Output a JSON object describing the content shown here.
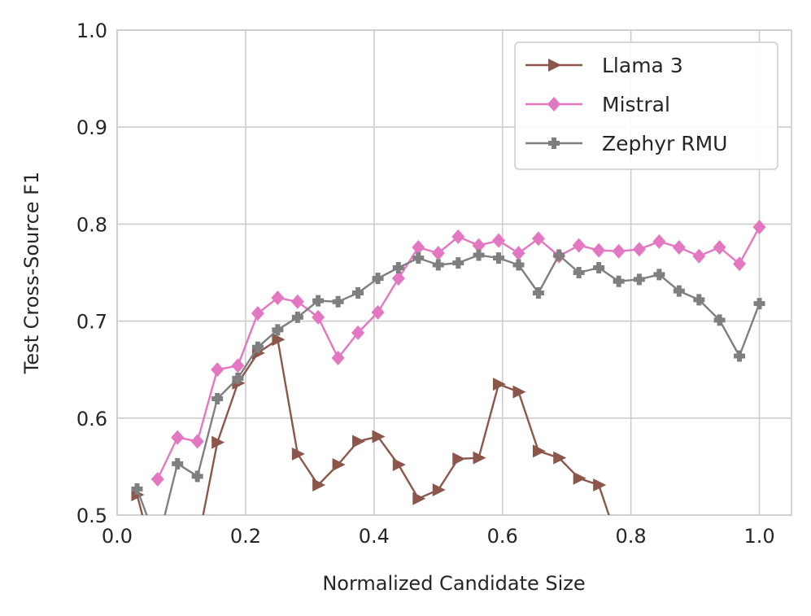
{
  "chart_data": {
    "type": "line",
    "title": "",
    "xlabel": "Normalized Candidate Size",
    "ylabel": "Test Cross-Source F1",
    "xlim": [
      0.0,
      1.05
    ],
    "ylim": [
      0.5,
      1.0
    ],
    "xticks": [
      "0.0",
      "0.2",
      "0.4",
      "0.6",
      "0.8",
      "1.0"
    ],
    "yticks": [
      "0.5",
      "0.6",
      "0.7",
      "0.8",
      "0.9",
      "1.0"
    ],
    "grid": true,
    "legend_position": "top-right",
    "series": [
      {
        "name": "Llama 3",
        "color": "#8c564b",
        "marker": "triangle-right",
        "points": [
          [
            0.031,
            0.521
          ],
          [
            0.063,
            0.44
          ],
          [
            0.125,
            0.47
          ],
          [
            0.156,
            0.575
          ],
          [
            0.188,
            0.636
          ],
          [
            0.219,
            0.667
          ],
          [
            0.25,
            0.681
          ],
          [
            0.281,
            0.563
          ],
          [
            0.313,
            0.531
          ],
          [
            0.344,
            0.552
          ],
          [
            0.375,
            0.576
          ],
          [
            0.406,
            0.581
          ],
          [
            0.438,
            0.552
          ],
          [
            0.469,
            0.517
          ],
          [
            0.5,
            0.526
          ],
          [
            0.531,
            0.558
          ],
          [
            0.563,
            0.559
          ],
          [
            0.594,
            0.635
          ],
          [
            0.625,
            0.627
          ],
          [
            0.656,
            0.566
          ],
          [
            0.688,
            0.559
          ],
          [
            0.719,
            0.538
          ],
          [
            0.75,
            0.531
          ],
          [
            0.781,
            0.47
          ]
        ]
      },
      {
        "name": "Mistral",
        "color": "#e377c2",
        "marker": "diamond",
        "points": [
          [
            0.063,
            0.537
          ],
          [
            0.094,
            0.58
          ],
          [
            0.125,
            0.576
          ],
          [
            0.156,
            0.65
          ],
          [
            0.188,
            0.654
          ],
          [
            0.219,
            0.708
          ],
          [
            0.25,
            0.724
          ],
          [
            0.281,
            0.72
          ],
          [
            0.313,
            0.704
          ],
          [
            0.344,
            0.662
          ],
          [
            0.375,
            0.688
          ],
          [
            0.406,
            0.709
          ],
          [
            0.438,
            0.744
          ],
          [
            0.469,
            0.776
          ],
          [
            0.5,
            0.77
          ],
          [
            0.531,
            0.787
          ],
          [
            0.563,
            0.778
          ],
          [
            0.594,
            0.783
          ],
          [
            0.625,
            0.77
          ],
          [
            0.656,
            0.785
          ],
          [
            0.688,
            0.767
          ],
          [
            0.719,
            0.778
          ],
          [
            0.75,
            0.773
          ],
          [
            0.781,
            0.772
          ],
          [
            0.813,
            0.774
          ],
          [
            0.844,
            0.782
          ],
          [
            0.875,
            0.776
          ],
          [
            0.906,
            0.767
          ],
          [
            0.938,
            0.776
          ],
          [
            0.969,
            0.759
          ],
          [
            1.0,
            0.797
          ]
        ]
      },
      {
        "name": "Zephyr RMU",
        "color": "#7f7f7f",
        "marker": "plus",
        "points": [
          [
            0.031,
            0.527
          ],
          [
            0.063,
            0.47
          ],
          [
            0.094,
            0.553
          ],
          [
            0.125,
            0.54
          ],
          [
            0.156,
            0.62
          ],
          [
            0.188,
            0.641
          ],
          [
            0.219,
            0.673
          ],
          [
            0.25,
            0.691
          ],
          [
            0.281,
            0.704
          ],
          [
            0.313,
            0.721
          ],
          [
            0.344,
            0.72
          ],
          [
            0.375,
            0.729
          ],
          [
            0.406,
            0.744
          ],
          [
            0.438,
            0.755
          ],
          [
            0.469,
            0.765
          ],
          [
            0.5,
            0.758
          ],
          [
            0.531,
            0.76
          ],
          [
            0.563,
            0.768
          ],
          [
            0.594,
            0.765
          ],
          [
            0.625,
            0.758
          ],
          [
            0.656,
            0.729
          ],
          [
            0.688,
            0.768
          ],
          [
            0.719,
            0.75
          ],
          [
            0.75,
            0.755
          ],
          [
            0.781,
            0.741
          ],
          [
            0.813,
            0.743
          ],
          [
            0.844,
            0.748
          ],
          [
            0.875,
            0.731
          ],
          [
            0.906,
            0.722
          ],
          [
            0.938,
            0.701
          ],
          [
            0.969,
            0.664
          ],
          [
            1.0,
            0.718
          ]
        ]
      }
    ]
  }
}
